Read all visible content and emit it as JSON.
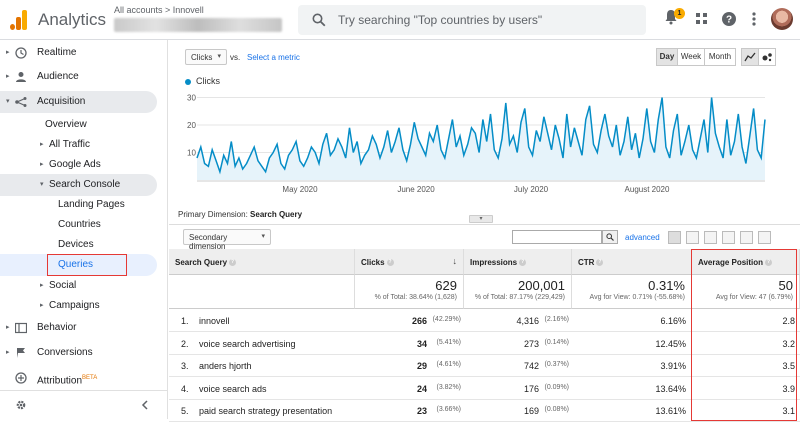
{
  "header": {
    "app_title": "Analytics",
    "breadcrumb": "All accounts > Innovell",
    "search_placeholder": "Try searching \"Top countries by users\"",
    "notification_count": "1"
  },
  "sidebar": {
    "items": [
      {
        "label": "Realtime"
      },
      {
        "label": "Audience"
      },
      {
        "label": "Acquisition"
      },
      {
        "label": "Overview"
      },
      {
        "label": "All Traffic"
      },
      {
        "label": "Google Ads"
      },
      {
        "label": "Search Console"
      },
      {
        "label": "Landing Pages"
      },
      {
        "label": "Countries"
      },
      {
        "label": "Devices"
      },
      {
        "label": "Queries"
      },
      {
        "label": "Social"
      },
      {
        "label": "Campaigns"
      },
      {
        "label": "Behavior"
      },
      {
        "label": "Conversions"
      },
      {
        "label": "Attribution"
      }
    ],
    "beta_label": "BETA"
  },
  "controls": {
    "metric_select": "Clicks",
    "vs_label": "vs.",
    "select_metric_link": "Select a metric",
    "period_day": "Day",
    "period_week": "Week",
    "period_month": "Month"
  },
  "chart_data": {
    "type": "line",
    "legend": "Clicks",
    "yticks": [
      "30",
      "20",
      "10"
    ],
    "ylim": [
      0,
      32
    ],
    "xticks": [
      "May 2020",
      "June 2020",
      "July 2020",
      "August 2020"
    ],
    "series": [
      {
        "name": "Clicks",
        "values": [
          8,
          12,
          6,
          5,
          11,
          7,
          3,
          9,
          6,
          14,
          5,
          8,
          4,
          6,
          9,
          12,
          7,
          5,
          3,
          8,
          10,
          13,
          6,
          4,
          9,
          11,
          14,
          7,
          5,
          8,
          12,
          10,
          6,
          13,
          17,
          9,
          11,
          15,
          12,
          8,
          19,
          10,
          14,
          6,
          9,
          11,
          16,
          13,
          8,
          12,
          18,
          10,
          14,
          19,
          11,
          7,
          13,
          21,
          15,
          12,
          9,
          17,
          14,
          20,
          11,
          8,
          15,
          22,
          12,
          16,
          9,
          13,
          19,
          17,
          10,
          22,
          14,
          24,
          11,
          8,
          15,
          28,
          13,
          16,
          10,
          21,
          26,
          12,
          9,
          18,
          14,
          23,
          17,
          11,
          20,
          15,
          8,
          24,
          12,
          19,
          14,
          9,
          22,
          27,
          13,
          10,
          18,
          24,
          16,
          12,
          20,
          9,
          14,
          23,
          11,
          17,
          8,
          15,
          26,
          14,
          10,
          22,
          30,
          12,
          8,
          18,
          24,
          9,
          14,
          20,
          11,
          8,
          15,
          22,
          10,
          30,
          17,
          12,
          8,
          22,
          9,
          14,
          24,
          12,
          6,
          16,
          26,
          11,
          8,
          22
        ]
      }
    ]
  },
  "primary_dimension": {
    "label": "Primary Dimension:",
    "value": "Search Query"
  },
  "table_controls": {
    "secondary_dimension": "Secondary dimension",
    "advanced_link": "advanced"
  },
  "table": {
    "headers": [
      "Search Query",
      "Clicks",
      "Impressions",
      "CTR",
      "Average Position"
    ],
    "totals": [
      {
        "value": "629",
        "sub": "% of Total: 38.64% (1,628)"
      },
      {
        "value": "200,001",
        "sub": "% of Total: 87.17% (229,429)"
      },
      {
        "value": "0.31%",
        "sub": "Avg for View: 0.71% (-55.68%)"
      },
      {
        "value": "50",
        "sub": "Avg for View: 47 (6.79%)"
      }
    ],
    "rows": [
      {
        "num": "1.",
        "query": "innovell",
        "clicks": "266",
        "clicks_pct": "(42.29%)",
        "impr": "4,316",
        "impr_pct": "(2.16%)",
        "ctr": "6.16%",
        "pos": "2.8"
      },
      {
        "num": "2.",
        "query": "voice search advertising",
        "clicks": "34",
        "clicks_pct": "(5.41%)",
        "impr": "273",
        "impr_pct": "(0.14%)",
        "ctr": "12.45%",
        "pos": "3.2"
      },
      {
        "num": "3.",
        "query": "anders hjorth",
        "clicks": "29",
        "clicks_pct": "(4.61%)",
        "impr": "742",
        "impr_pct": "(0.37%)",
        "ctr": "3.91%",
        "pos": "3.5"
      },
      {
        "num": "4.",
        "query": "voice search ads",
        "clicks": "24",
        "clicks_pct": "(3.82%)",
        "impr": "176",
        "impr_pct": "(0.09%)",
        "ctr": "13.64%",
        "pos": "3.9"
      },
      {
        "num": "5.",
        "query": "paid search strategy presentation",
        "clicks": "23",
        "clicks_pct": "(3.66%)",
        "impr": "169",
        "impr_pct": "(0.08%)",
        "ctr": "13.61%",
        "pos": "3.1"
      }
    ]
  },
  "colors": {
    "accent": "#1a73e8",
    "chart_line": "#058dc7",
    "highlight_border": "#e53935"
  }
}
